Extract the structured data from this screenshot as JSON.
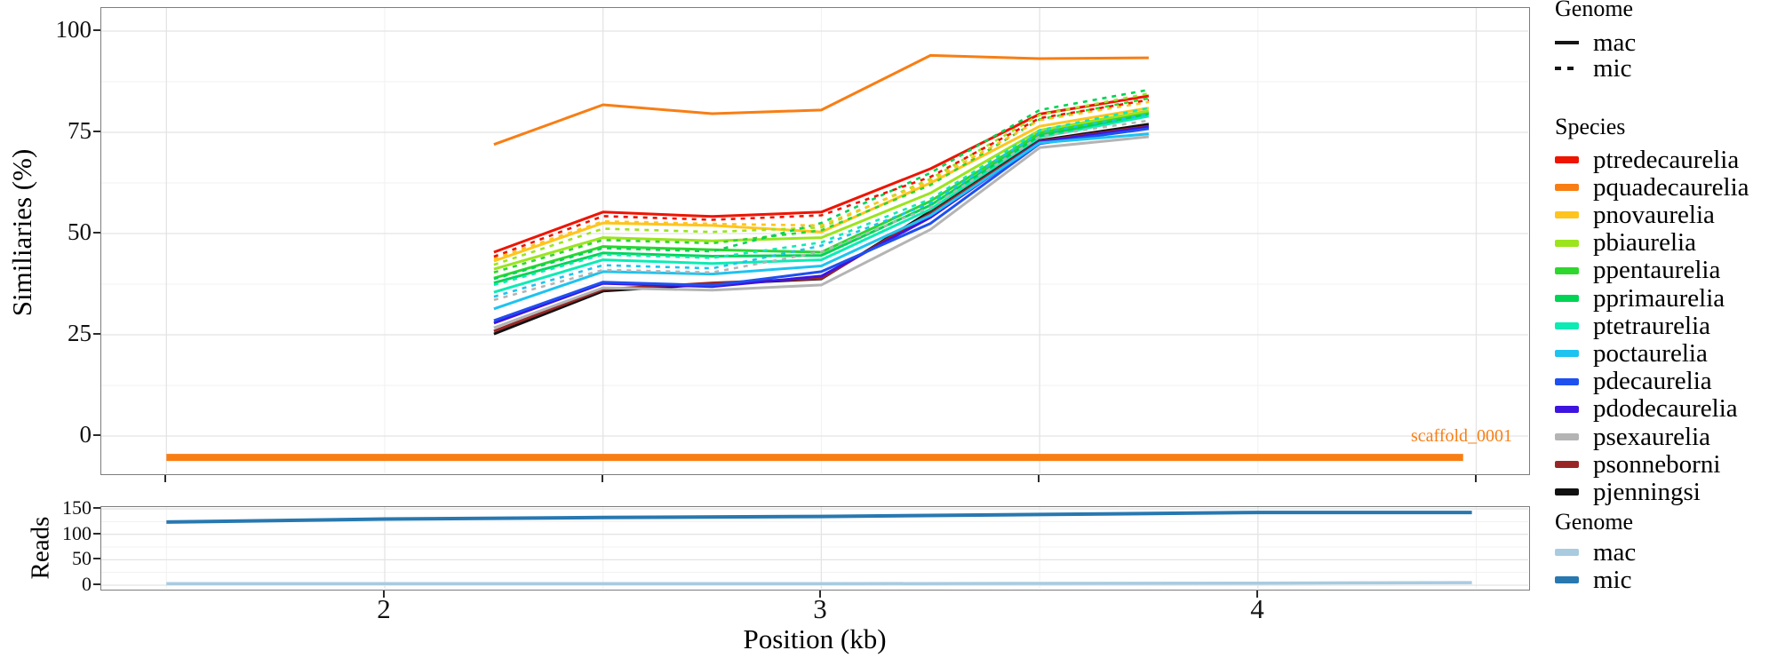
{
  "figure": {
    "background": "#ffffff",
    "panel_border_color": "#7d7d7d",
    "grid_major_color": "#e4e4e4",
    "grid_minor_color": "#f1f1f1"
  },
  "chart_data": [
    {
      "type": "line",
      "title": "",
      "ylabel": "Similiaries (%)",
      "xlabel": "Position (kb)",
      "x": [
        2.25,
        2.5,
        2.75,
        3.0,
        3.25,
        3.5,
        3.75
      ],
      "xlim": [
        1.35,
        4.62
      ],
      "ylim": [
        -10,
        105.6
      ],
      "yticks": [
        0,
        25,
        50,
        75,
        100
      ],
      "yticks_minor": [
        12.5,
        37.5,
        62.5,
        87.5
      ],
      "xticks": [
        1.5,
        2.5,
        3.5,
        4.5
      ],
      "xticks_minor": [
        2,
        3,
        4
      ],
      "grid": true,
      "legend_position": "right",
      "scaffold": {
        "label": "scaffold_0001",
        "from": 1.5,
        "to": 4.47,
        "value": -5.3,
        "color": "#F87E14",
        "thickness": 8
      },
      "series": [
        {
          "species": "pjenningsi",
          "genome": "mac",
          "color": "#111111",
          "dash": false,
          "values": [
            25.2,
            35.8,
            37.5,
            38.8,
            55.5,
            73.0,
            77.0
          ]
        },
        {
          "species": "psonneborni",
          "genome": "mac",
          "color": "#992626",
          "dash": false,
          "values": [
            25.9,
            36.2,
            37.8,
            38.9,
            55.0,
            72.8,
            76.5
          ]
        },
        {
          "species": "psexaurelia",
          "genome": "mac",
          "color": "#B4B4B4",
          "dash": false,
          "values": [
            26.7,
            36.6,
            36.0,
            37.3,
            51.0,
            71.2,
            73.9
          ]
        },
        {
          "species": "pdodecaurelia",
          "genome": "mac",
          "color": "#3D14E0",
          "dash": false,
          "values": [
            27.9,
            37.7,
            36.9,
            39.5,
            54.0,
            72.6,
            76.3
          ]
        },
        {
          "species": "pdecaurelia",
          "genome": "mac",
          "color": "#1E50F0",
          "dash": false,
          "values": [
            28.5,
            38.0,
            37.2,
            40.6,
            52.5,
            72.2,
            75.9
          ]
        },
        {
          "species": "poctaurelia",
          "genome": "mac",
          "color": "#1EC3F0",
          "dash": false,
          "values": [
            31.4,
            40.6,
            40.0,
            42.0,
            54.5,
            72.4,
            74.6
          ]
        },
        {
          "species": "ptetraurelia",
          "genome": "mac",
          "color": "#0CEBB4",
          "dash": false,
          "values": [
            35.5,
            43.5,
            42.6,
            43.5,
            56.0,
            73.8,
            79.0
          ]
        },
        {
          "species": "pprimaurelia",
          "genome": "mac",
          "color": "#00D455",
          "dash": false,
          "values": [
            37.8,
            45.2,
            44.4,
            44.6,
            57.0,
            74.2,
            79.6
          ]
        },
        {
          "species": "ppentaurelia",
          "genome": "mac",
          "color": "#2ED62E",
          "dash": false,
          "values": [
            39.0,
            46.8,
            46.0,
            45.4,
            58.0,
            74.8,
            80.0
          ]
        },
        {
          "species": "pbiaurelia",
          "genome": "mac",
          "color": "#9BE41E",
          "dash": false,
          "values": [
            41.2,
            49.0,
            48.2,
            49.0,
            60.0,
            75.5,
            80.3
          ]
        },
        {
          "species": "pnovaurelia",
          "genome": "mac",
          "color": "#FFC41E",
          "dash": false,
          "values": [
            43.2,
            52.6,
            52.0,
            50.4,
            62.5,
            76.5,
            81.0
          ]
        },
        {
          "species": "ptredecaurelia",
          "genome": "mac",
          "color": "#EE1400",
          "dash": false,
          "values": [
            45.4,
            55.3,
            54.2,
            55.3,
            66.0,
            79.5,
            84.0
          ]
        },
        {
          "species": "psexaurelia",
          "genome": "mic",
          "color": "#B4B4B4",
          "dash": true,
          "values": [
            33.6,
            41.0,
            40.4,
            45.5,
            56.5,
            74.0,
            77.9
          ]
        },
        {
          "species": "poctaurelia",
          "genome": "mic",
          "color": "#1EC3F0",
          "dash": true,
          "values": [
            34.4,
            42.2,
            41.4,
            47.0,
            57.5,
            75.0,
            79.4
          ]
        },
        {
          "species": "ptetraurelia",
          "genome": "mic",
          "color": "#0CEBB4",
          "dash": true,
          "values": [
            37.3,
            44.8,
            44.0,
            47.8,
            58.5,
            75.5,
            81.0
          ]
        },
        {
          "species": "ppentaurelia",
          "genome": "mic",
          "color": "#2ED62E",
          "dash": true,
          "values": [
            40.4,
            48.4,
            47.6,
            50.8,
            62.0,
            78.2,
            83.4
          ]
        },
        {
          "species": "pbiaurelia",
          "genome": "mic",
          "color": "#9BE41E",
          "dash": true,
          "values": [
            42.3,
            51.2,
            50.4,
            51.5,
            63.5,
            79.3,
            84.6
          ]
        },
        {
          "species": "pprimaurelia",
          "genome": "mic",
          "color": "#00D455",
          "dash": true,
          "values": [
            38.8,
            46.4,
            45.6,
            52.6,
            65.0,
            80.5,
            85.5
          ]
        },
        {
          "species": "pnovaurelia",
          "genome": "mic",
          "color": "#FFC41E",
          "dash": true,
          "values": [
            43.8,
            53.0,
            52.4,
            52.0,
            63.0,
            78.0,
            82.5
          ]
        },
        {
          "species": "ptredecaurelia",
          "genome": "mic",
          "color": "#EE1400",
          "dash": true,
          "values": [
            44.3,
            54.3,
            53.4,
            54.5,
            64.0,
            78.5,
            83.0
          ]
        },
        {
          "species": "pquadecaurelia",
          "genome": "mac",
          "color": "#F87E14",
          "dash": false,
          "values": [
            72.0,
            81.8,
            79.6,
            80.5,
            94.0,
            93.2,
            93.4
          ]
        }
      ]
    },
    {
      "type": "line",
      "title": "",
      "ylabel": "Reads",
      "x": [
        1.5,
        2.0,
        2.5,
        3.0,
        3.5,
        4.0,
        4.49
      ],
      "xlim": [
        1.35,
        4.62
      ],
      "ylim": [
        -12,
        153
      ],
      "yticks": [
        0,
        50,
        100,
        150
      ],
      "yticks_minor": [
        25,
        75,
        125
      ],
      "xticks": [
        2,
        3,
        4
      ],
      "xticks_minor": [
        1.5,
        2.5,
        3.5,
        4.5
      ],
      "grid": true,
      "series": [
        {
          "name": "mac",
          "color": "#A8CBE0",
          "width": 3.5,
          "values": [
            3,
            3,
            3,
            3,
            3.5,
            4,
            5
          ]
        },
        {
          "name": "mic",
          "color": "#2878B0",
          "width": 4,
          "values": [
            124,
            130,
            133,
            135,
            139,
            143,
            143
          ]
        }
      ]
    }
  ],
  "legends": {
    "genome_top": {
      "title": "Genome",
      "items": [
        {
          "label": "mac",
          "style": "solid-line"
        },
        {
          "label": "mic",
          "style": "dashed-line"
        }
      ]
    },
    "species": {
      "title": "Species",
      "items": [
        {
          "label": "ptredecaurelia",
          "color": "#EE1400"
        },
        {
          "label": "pquadecaurelia",
          "color": "#F87E14"
        },
        {
          "label": "pnovaurelia",
          "color": "#FFC41E"
        },
        {
          "label": "pbiaurelia",
          "color": "#9BE41E"
        },
        {
          "label": "ppentaurelia",
          "color": "#2ED62E"
        },
        {
          "label": "pprimaurelia",
          "color": "#00D455"
        },
        {
          "label": "ptetraurelia",
          "color": "#0CEBB4"
        },
        {
          "label": "poctaurelia",
          "color": "#1EC3F0"
        },
        {
          "label": "pdecaurelia",
          "color": "#1E50F0"
        },
        {
          "label": "pdodecaurelia",
          "color": "#3D14E0"
        },
        {
          "label": "psexaurelia",
          "color": "#B4B4B4"
        },
        {
          "label": "psonneborni",
          "color": "#992626"
        },
        {
          "label": "pjenningsi",
          "color": "#111111"
        }
      ]
    },
    "genome_bottom": {
      "title": "Genome",
      "items": [
        {
          "label": "mac",
          "color": "#A8CBE0"
        },
        {
          "label": "mic",
          "color": "#2878B0"
        }
      ]
    }
  }
}
